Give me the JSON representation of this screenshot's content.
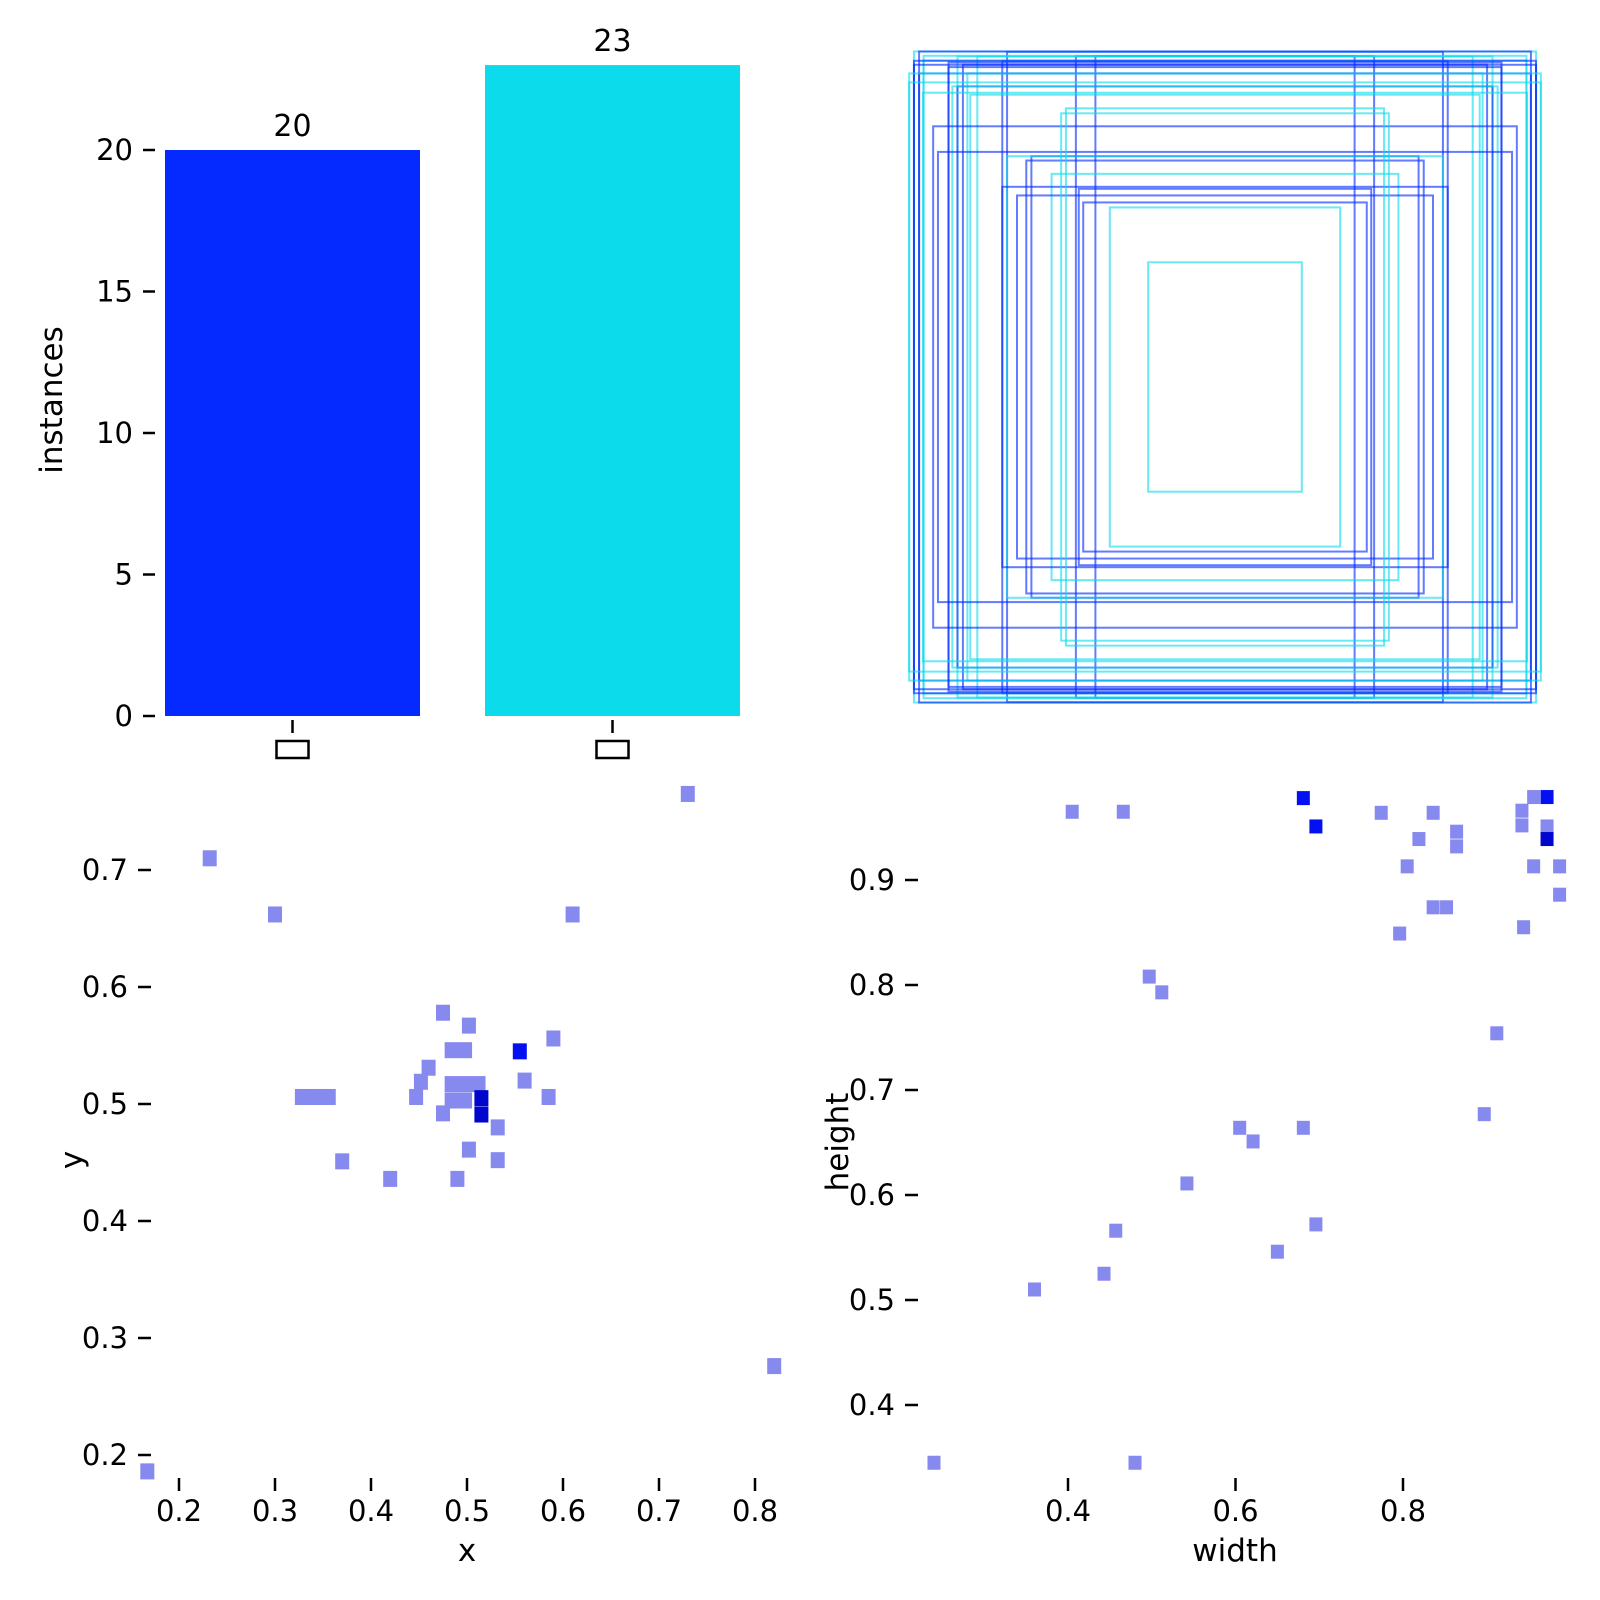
{
  "figure": {
    "background": "#ffffff",
    "description": "2x2 dataset-label statistics figure: class instance bar chart, bounding-box overlay, x/y center 2D histogram, width/height 2D histogram"
  },
  "colors": {
    "class_blue": "#042AFF",
    "class_cyan": "#0BDBEB",
    "hist_level_1": "#8689EE",
    "hist_level_2": "#0310F2",
    "hist_level_3": "#0006CE",
    "text": "#000000"
  },
  "chart_data": [
    {
      "type": "bar",
      "title": "",
      "ylabel": "instances",
      "xlabel": "",
      "categories": [
        "□",
        "□"
      ],
      "categories_note": "class-name glyphs missing from font, rendered as empty tofu boxes",
      "values": [
        20,
        23
      ],
      "annotations": [
        "20",
        "23"
      ],
      "bar_colors": [
        "#042AFF",
        "#0BDBEB"
      ],
      "yticks": [
        0,
        5,
        10,
        15,
        20
      ],
      "ylim": [
        0,
        23
      ],
      "grid": false,
      "legend": "none"
    },
    {
      "type": "boxes-overlay",
      "title": "",
      "description": "all bounding boxes drawn centered, outline only, colored by class",
      "class_colors": [
        "#042AFF",
        "#0BDBEB"
      ],
      "stroke_opacity": 0.62,
      "boxes": [
        {
          "w": 0.405,
          "h": 0.965,
          "c": 0
        },
        {
          "w": 0.466,
          "h": 0.965,
          "c": 0
        },
        {
          "w": 0.681,
          "h": 0.978,
          "c": 0
        },
        {
          "w": 0.696,
          "h": 0.951,
          "c": 0
        },
        {
          "w": 0.774,
          "h": 0.964,
          "c": 1
        },
        {
          "w": 0.836,
          "h": 0.964,
          "c": 1
        },
        {
          "w": 0.819,
          "h": 0.939,
          "c": 0
        },
        {
          "w": 0.805,
          "h": 0.913,
          "c": 1
        },
        {
          "w": 0.836,
          "h": 0.874,
          "c": 0
        },
        {
          "w": 0.852,
          "h": 0.874,
          "c": 1
        },
        {
          "w": 0.796,
          "h": 0.849,
          "c": 1
        },
        {
          "w": 0.972,
          "h": 0.979,
          "c": 1
        },
        {
          "w": 0.956,
          "h": 0.979,
          "c": 0
        },
        {
          "w": 0.942,
          "h": 0.966,
          "c": 1
        },
        {
          "w": 0.942,
          "h": 0.952,
          "c": 1
        },
        {
          "w": 0.972,
          "h": 0.951,
          "c": 0
        },
        {
          "w": 0.972,
          "h": 0.939,
          "c": 0
        },
        {
          "w": 0.956,
          "h": 0.913,
          "c": 0
        },
        {
          "w": 0.987,
          "h": 0.913,
          "c": 1
        },
        {
          "w": 0.987,
          "h": 0.886,
          "c": 1
        },
        {
          "w": 0.864,
          "h": 0.946,
          "c": 0
        },
        {
          "w": 0.864,
          "h": 0.932,
          "c": 0
        },
        {
          "w": 0.944,
          "h": 0.855,
          "c": 1
        },
        {
          "w": 0.912,
          "h": 0.754,
          "c": 0
        },
        {
          "w": 0.897,
          "h": 0.677,
          "c": 0
        },
        {
          "w": 0.605,
          "h": 0.664,
          "c": 0
        },
        {
          "w": 0.621,
          "h": 0.651,
          "c": 0
        },
        {
          "w": 0.681,
          "h": 0.664,
          "c": 1
        },
        {
          "w": 0.542,
          "h": 0.611,
          "c": 1
        },
        {
          "w": 0.696,
          "h": 0.572,
          "c": 0
        },
        {
          "w": 0.65,
          "h": 0.546,
          "c": 0
        },
        {
          "w": 0.497,
          "h": 0.808,
          "c": 1
        },
        {
          "w": 0.512,
          "h": 0.793,
          "c": 1
        },
        {
          "w": 0.457,
          "h": 0.566,
          "c": 0
        },
        {
          "w": 0.443,
          "h": 0.525,
          "c": 0
        },
        {
          "w": 0.36,
          "h": 0.51,
          "c": 1
        },
        {
          "w": 0.24,
          "h": 0.345,
          "c": 1
        }
      ]
    },
    {
      "type": "heatmap",
      "title": "",
      "xlabel": "x",
      "ylabel": "y",
      "xticks": [
        0.2,
        0.3,
        0.4,
        0.5,
        0.6,
        0.7,
        0.8
      ],
      "yticks": [
        0.2,
        0.3,
        0.4,
        0.5,
        0.6,
        0.7
      ],
      "xlim": [
        0.15,
        0.85
      ],
      "ylim": [
        0.17,
        0.79
      ],
      "grid": false,
      "level_colors": {
        "1": "#8689EE",
        "2": "#0310F2",
        "3": "#0006CE"
      },
      "bins": [
        {
          "x": 0.167,
          "y": 0.186,
          "n": 1
        },
        {
          "x": 0.82,
          "y": 0.276,
          "n": 1
        },
        {
          "x": 0.73,
          "y": 0.765,
          "n": 1
        },
        {
          "x": 0.232,
          "y": 0.71,
          "n": 1
        },
        {
          "x": 0.3,
          "y": 0.662,
          "n": 1
        },
        {
          "x": 0.61,
          "y": 0.662,
          "n": 1
        },
        {
          "x": 0.475,
          "y": 0.578,
          "n": 1
        },
        {
          "x": 0.502,
          "y": 0.567,
          "n": 1
        },
        {
          "x": 0.59,
          "y": 0.556,
          "n": 1
        },
        {
          "x": 0.555,
          "y": 0.545,
          "n": 2
        },
        {
          "x": 0.484,
          "y": 0.546,
          "n": 1
        },
        {
          "x": 0.498,
          "y": 0.546,
          "n": 1
        },
        {
          "x": 0.46,
          "y": 0.531,
          "n": 1
        },
        {
          "x": 0.452,
          "y": 0.519,
          "n": 1
        },
        {
          "x": 0.447,
          "y": 0.506,
          "n": 1
        },
        {
          "x": 0.328,
          "y": 0.506,
          "n": 1
        },
        {
          "x": 0.342,
          "y": 0.506,
          "n": 1
        },
        {
          "x": 0.356,
          "y": 0.506,
          "n": 1
        },
        {
          "x": 0.484,
          "y": 0.517,
          "n": 1
        },
        {
          "x": 0.498,
          "y": 0.517,
          "n": 1
        },
        {
          "x": 0.512,
          "y": 0.517,
          "n": 1
        },
        {
          "x": 0.484,
          "y": 0.503,
          "n": 1
        },
        {
          "x": 0.498,
          "y": 0.503,
          "n": 1
        },
        {
          "x": 0.515,
          "y": 0.505,
          "n": 3
        },
        {
          "x": 0.515,
          "y": 0.491,
          "n": 3
        },
        {
          "x": 0.475,
          "y": 0.492,
          "n": 1
        },
        {
          "x": 0.532,
          "y": 0.48,
          "n": 1
        },
        {
          "x": 0.56,
          "y": 0.52,
          "n": 1
        },
        {
          "x": 0.585,
          "y": 0.506,
          "n": 1
        },
        {
          "x": 0.502,
          "y": 0.461,
          "n": 1
        },
        {
          "x": 0.37,
          "y": 0.451,
          "n": 1
        },
        {
          "x": 0.532,
          "y": 0.452,
          "n": 1
        },
        {
          "x": 0.42,
          "y": 0.436,
          "n": 1
        },
        {
          "x": 0.49,
          "y": 0.436,
          "n": 1
        }
      ]
    },
    {
      "type": "heatmap",
      "title": "",
      "xlabel": "width",
      "ylabel": "height",
      "xticks": [
        0.4,
        0.6,
        0.8
      ],
      "yticks": [
        0.4,
        0.5,
        0.6,
        0.7,
        0.8,
        0.9
      ],
      "xlim": [
        0.19,
        1.01
      ],
      "ylim": [
        0.33,
        1.0
      ],
      "grid": false,
      "level_colors": {
        "1": "#8689EE",
        "2": "#0310F2",
        "3": "#0006CE"
      },
      "bins": [
        {
          "x": 0.405,
          "y": 0.965,
          "n": 1
        },
        {
          "x": 0.466,
          "y": 0.965,
          "n": 1
        },
        {
          "x": 0.681,
          "y": 0.978,
          "n": 2
        },
        {
          "x": 0.696,
          "y": 0.951,
          "n": 2
        },
        {
          "x": 0.774,
          "y": 0.964,
          "n": 1
        },
        {
          "x": 0.836,
          "y": 0.964,
          "n": 1
        },
        {
          "x": 0.819,
          "y": 0.939,
          "n": 1
        },
        {
          "x": 0.805,
          "y": 0.913,
          "n": 1
        },
        {
          "x": 0.836,
          "y": 0.874,
          "n": 1
        },
        {
          "x": 0.852,
          "y": 0.874,
          "n": 1
        },
        {
          "x": 0.796,
          "y": 0.849,
          "n": 1
        },
        {
          "x": 0.972,
          "y": 0.979,
          "n": 2
        },
        {
          "x": 0.956,
          "y": 0.979,
          "n": 1
        },
        {
          "x": 0.942,
          "y": 0.966,
          "n": 1
        },
        {
          "x": 0.942,
          "y": 0.952,
          "n": 1
        },
        {
          "x": 0.972,
          "y": 0.951,
          "n": 1
        },
        {
          "x": 0.972,
          "y": 0.939,
          "n": 3
        },
        {
          "x": 0.956,
          "y": 0.913,
          "n": 1
        },
        {
          "x": 0.987,
          "y": 0.913,
          "n": 1
        },
        {
          "x": 0.987,
          "y": 0.886,
          "n": 1
        },
        {
          "x": 0.864,
          "y": 0.946,
          "n": 1
        },
        {
          "x": 0.864,
          "y": 0.932,
          "n": 1
        },
        {
          "x": 0.944,
          "y": 0.855,
          "n": 1
        },
        {
          "x": 0.912,
          "y": 0.754,
          "n": 1
        },
        {
          "x": 0.897,
          "y": 0.677,
          "n": 1
        },
        {
          "x": 0.605,
          "y": 0.664,
          "n": 1
        },
        {
          "x": 0.621,
          "y": 0.651,
          "n": 1
        },
        {
          "x": 0.681,
          "y": 0.664,
          "n": 1
        },
        {
          "x": 0.542,
          "y": 0.611,
          "n": 1
        },
        {
          "x": 0.696,
          "y": 0.572,
          "n": 1
        },
        {
          "x": 0.65,
          "y": 0.546,
          "n": 1
        },
        {
          "x": 0.497,
          "y": 0.808,
          "n": 1
        },
        {
          "x": 0.512,
          "y": 0.793,
          "n": 1
        },
        {
          "x": 0.457,
          "y": 0.566,
          "n": 1
        },
        {
          "x": 0.443,
          "y": 0.525,
          "n": 1
        },
        {
          "x": 0.36,
          "y": 0.51,
          "n": 1
        },
        {
          "x": 0.24,
          "y": 0.345,
          "n": 1
        },
        {
          "x": 0.48,
          "y": 0.345,
          "n": 1
        }
      ]
    }
  ]
}
